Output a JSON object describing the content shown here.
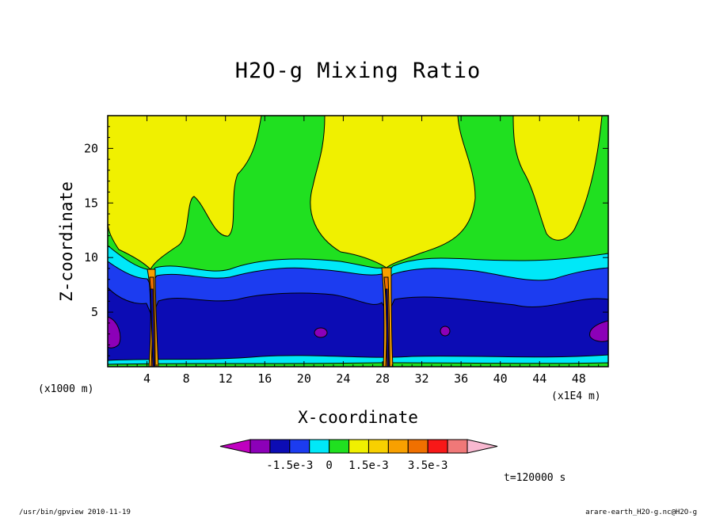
{
  "chart_data": {
    "type": "heatmap",
    "title": "H2O-g Mixing Ratio",
    "xlabel": "X-coordinate",
    "ylabel": "Z-coordinate",
    "x_unit_label": "(x1000 m)",
    "x_scale_label": "(x1E4 m)",
    "time_label": "t=120000 s",
    "x_ticks": [
      4,
      8,
      12,
      16,
      20,
      24,
      28,
      32,
      36,
      40,
      44,
      48
    ],
    "y_ticks": [
      5,
      10,
      15,
      20
    ],
    "xlim": [
      0,
      51
    ],
    "ylim": [
      0,
      23
    ],
    "colorbar": {
      "colors": [
        "#c000c0",
        "#8c00b8",
        "#0c0cb4",
        "#1c3cf0",
        "#00e8f8",
        "#20e020",
        "#f0f000",
        "#f8d000",
        "#f8a000",
        "#f07000",
        "#f81818",
        "#f07878",
        "#f8b8d0"
      ],
      "tick_labels": [
        "-1.5e-3",
        "0",
        "1.5e-3",
        "3.5e-3"
      ]
    },
    "regions": [
      {
        "color": "#f0f000",
        "note": "upper left"
      },
      {
        "color": "#20e020",
        "note": "mid layer"
      },
      {
        "color": "#00e8f8",
        "note": "lower-mid layer"
      },
      {
        "color": "#1c3cf0",
        "note": "lower layer"
      },
      {
        "color": "#0c0cb4",
        "note": "near-surface"
      },
      {
        "color": "#8c00b8",
        "note": "minima"
      }
    ]
  },
  "footer": {
    "left": "/usr/bin/gpview  2010-11-19",
    "right": "arare-earth_H2O-g.nc@H2O-g"
  }
}
